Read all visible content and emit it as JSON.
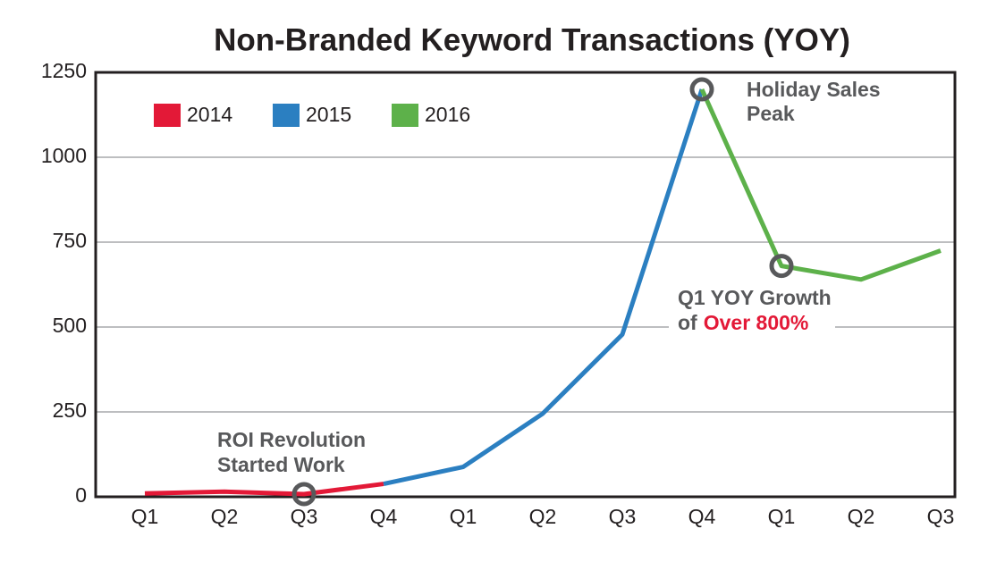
{
  "chart_data": {
    "type": "line",
    "title": "Non-Branded Keyword Transactions (YOY)",
    "categories": [
      "Q1",
      "Q2",
      "Q3",
      "Q4",
      "Q1",
      "Q2",
      "Q3",
      "Q4",
      "Q1",
      "Q2",
      "Q3"
    ],
    "series": [
      {
        "name": "2014",
        "color": "#e31937",
        "values": [
          10,
          15,
          8,
          38,
          null,
          null,
          null,
          null,
          null,
          null,
          null
        ]
      },
      {
        "name": "2015",
        "color": "#2b7fc1",
        "values": [
          null,
          null,
          null,
          38,
          88,
          245,
          478,
          1200,
          null,
          null,
          null
        ]
      },
      {
        "name": "2016",
        "color": "#5db14a",
        "values": [
          null,
          null,
          null,
          null,
          null,
          null,
          null,
          1200,
          680,
          640,
          725
        ]
      }
    ],
    "ylim": [
      0,
      1250
    ],
    "yticks": [
      0,
      250,
      500,
      750,
      1000,
      1250
    ],
    "grid": true,
    "legend": "top-left",
    "annotations": {
      "holiday": [
        "Holiday Sales",
        "Peak"
      ],
      "growth": [
        "Q1 YOY Growth",
        "of",
        "Over 800%"
      ],
      "growth_highlight_color": "#e31937",
      "roi": [
        "ROI Revolution",
        "Started Work"
      ]
    }
  }
}
